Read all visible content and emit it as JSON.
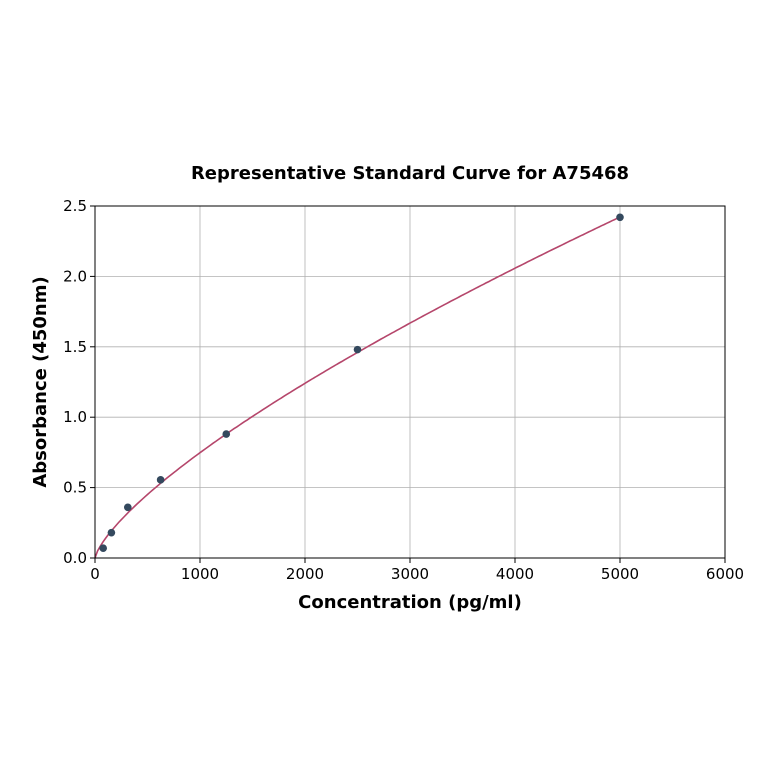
{
  "chart_data": {
    "type": "scatter",
    "title": "Representative Standard Curve for A75468",
    "xlabel": "Concentration (pg/ml)",
    "ylabel": "Absorbance (450nm)",
    "xlim": [
      0,
      6000
    ],
    "ylim": [
      0,
      2.5
    ],
    "xticks": [
      "0",
      "1000",
      "2000",
      "3000",
      "4000",
      "5000",
      "6000"
    ],
    "yticks": [
      "0.0",
      "0.5",
      "1.0",
      "1.5",
      "2.0",
      "2.5"
    ],
    "grid": true,
    "series": [
      {
        "x": [
          78.125,
          156.25,
          312.5,
          625,
          1250,
          2500,
          5000
        ],
        "y": [
          0.07,
          0.18,
          0.36,
          0.555,
          0.88,
          1.48,
          2.42
        ],
        "marker_color": "#34495e",
        "curve_color": "#b5466b"
      }
    ]
  }
}
